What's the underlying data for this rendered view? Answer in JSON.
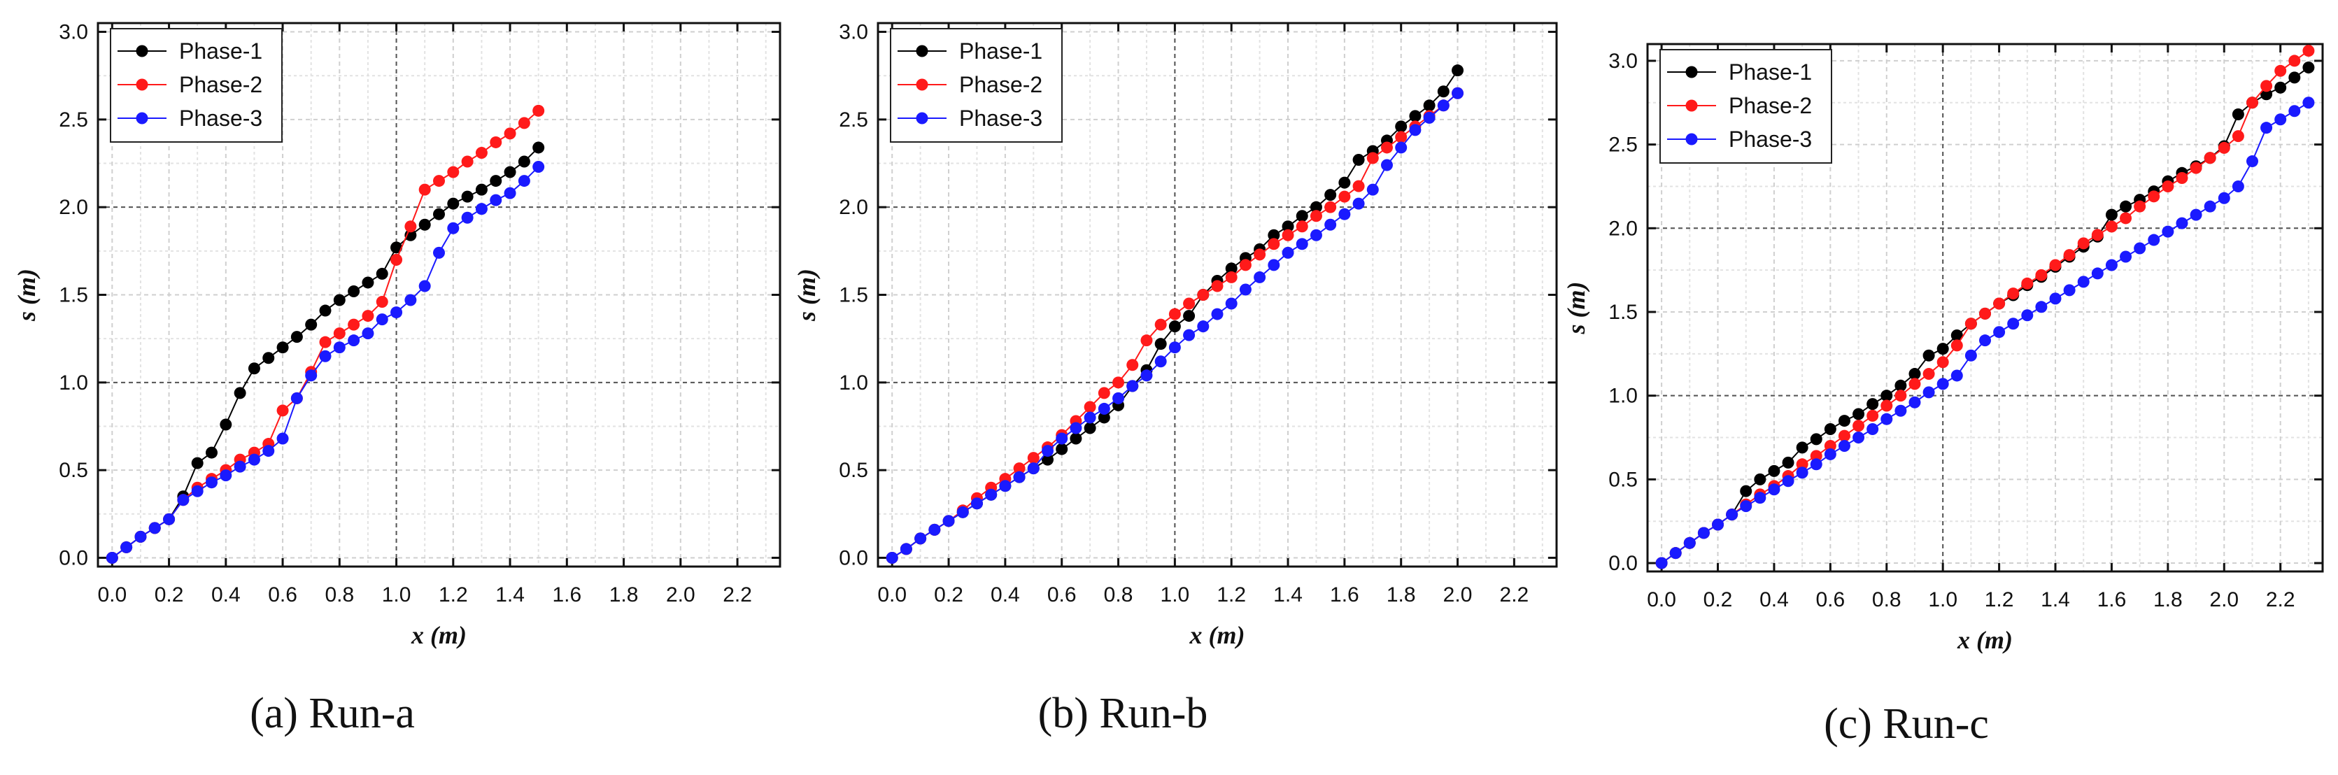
{
  "chart_data": [
    {
      "type": "line",
      "caption": "(a) Run-a",
      "xlabel": "x (m)",
      "ylabel": "s (m)",
      "xlim": [
        -0.05,
        2.35
      ],
      "ylim": [
        -0.05,
        3.05
      ],
      "xticks": [
        "0.0",
        "0.2",
        "0.4",
        "0.6",
        "0.8",
        "1.0",
        "1.2",
        "1.4",
        "1.6",
        "1.8",
        "2.0",
        "2.2"
      ],
      "yticks": [
        "0.0",
        "0.5",
        "1.0",
        "1.5",
        "2.0",
        "2.5",
        "3.0"
      ],
      "grid": true,
      "legend_position": "top-left",
      "series": [
        {
          "name": "Phase-1",
          "color": "#000000",
          "x": [
            0.0,
            0.05,
            0.1,
            0.15,
            0.2,
            0.25,
            0.3,
            0.35,
            0.4,
            0.45,
            0.5,
            0.55,
            0.6,
            0.65,
            0.7,
            0.75,
            0.8,
            0.85,
            0.9,
            0.95,
            1.0,
            1.05,
            1.1,
            1.15,
            1.2,
            1.25,
            1.3,
            1.35,
            1.4,
            1.45,
            1.5
          ],
          "y": [
            0.0,
            0.06,
            0.12,
            0.17,
            0.22,
            0.35,
            0.54,
            0.6,
            0.76,
            0.94,
            1.08,
            1.14,
            1.2,
            1.26,
            1.33,
            1.41,
            1.47,
            1.52,
            1.57,
            1.62,
            1.77,
            1.84,
            1.9,
            1.96,
            2.02,
            2.06,
            2.1,
            2.15,
            2.2,
            2.26,
            2.34
          ]
        },
        {
          "name": "Phase-2",
          "color": "#ff1a1a",
          "x": [
            0.0,
            0.05,
            0.1,
            0.15,
            0.2,
            0.25,
            0.3,
            0.35,
            0.4,
            0.45,
            0.5,
            0.55,
            0.6,
            0.65,
            0.7,
            0.75,
            0.8,
            0.85,
            0.9,
            0.95,
            1.0,
            1.05,
            1.1,
            1.15,
            1.2,
            1.25,
            1.3,
            1.35,
            1.4,
            1.45,
            1.5
          ],
          "y": [
            0.0,
            0.06,
            0.12,
            0.17,
            0.22,
            0.33,
            0.4,
            0.45,
            0.5,
            0.56,
            0.6,
            0.65,
            0.84,
            0.91,
            1.06,
            1.23,
            1.28,
            1.33,
            1.38,
            1.46,
            1.7,
            1.89,
            2.1,
            2.15,
            2.2,
            2.26,
            2.31,
            2.37,
            2.42,
            2.48,
            2.55
          ]
        },
        {
          "name": "Phase-3",
          "color": "#1a1aff",
          "x": [
            0.0,
            0.05,
            0.1,
            0.15,
            0.2,
            0.25,
            0.3,
            0.35,
            0.4,
            0.45,
            0.5,
            0.55,
            0.6,
            0.65,
            0.7,
            0.75,
            0.8,
            0.85,
            0.9,
            0.95,
            1.0,
            1.05,
            1.1,
            1.15,
            1.2,
            1.25,
            1.3,
            1.35,
            1.4,
            1.45,
            1.5
          ],
          "y": [
            0.0,
            0.06,
            0.12,
            0.17,
            0.22,
            0.33,
            0.38,
            0.43,
            0.47,
            0.52,
            0.56,
            0.61,
            0.68,
            0.91,
            1.04,
            1.15,
            1.2,
            1.24,
            1.28,
            1.36,
            1.4,
            1.47,
            1.55,
            1.74,
            1.88,
            1.94,
            1.99,
            2.04,
            2.08,
            2.15,
            2.23
          ]
        }
      ]
    },
    {
      "type": "line",
      "caption": "(b) Run-b",
      "xlabel": "x (m)",
      "ylabel": "s (m)",
      "xlim": [
        -0.05,
        2.35
      ],
      "ylim": [
        -0.05,
        3.05
      ],
      "xticks": [
        "0.0",
        "0.2",
        "0.4",
        "0.6",
        "0.8",
        "1.0",
        "1.2",
        "1.4",
        "1.6",
        "1.8",
        "2.0",
        "2.2"
      ],
      "yticks": [
        "0.0",
        "0.5",
        "1.0",
        "1.5",
        "2.0",
        "2.5",
        "3.0"
      ],
      "grid": true,
      "legend_position": "top-left",
      "series": [
        {
          "name": "Phase-1",
          "color": "#000000",
          "x": [
            0.0,
            0.05,
            0.1,
            0.15,
            0.2,
            0.25,
            0.3,
            0.35,
            0.4,
            0.45,
            0.5,
            0.55,
            0.6,
            0.65,
            0.7,
            0.75,
            0.8,
            0.85,
            0.9,
            0.95,
            1.0,
            1.05,
            1.1,
            1.15,
            1.2,
            1.25,
            1.3,
            1.35,
            1.4,
            1.45,
            1.5,
            1.55,
            1.6,
            1.65,
            1.7,
            1.75,
            1.8,
            1.85,
            1.9,
            1.95,
            2.0
          ],
          "y": [
            0.0,
            0.05,
            0.11,
            0.16,
            0.21,
            0.26,
            0.31,
            0.36,
            0.41,
            0.46,
            0.51,
            0.56,
            0.62,
            0.68,
            0.74,
            0.8,
            0.87,
            0.98,
            1.07,
            1.22,
            1.32,
            1.38,
            1.5,
            1.58,
            1.65,
            1.71,
            1.76,
            1.84,
            1.89,
            1.95,
            2.0,
            2.07,
            2.14,
            2.27,
            2.32,
            2.38,
            2.46,
            2.52,
            2.58,
            2.66,
            2.78
          ]
        },
        {
          "name": "Phase-2",
          "color": "#ff1a1a",
          "x": [
            0.0,
            0.05,
            0.1,
            0.15,
            0.2,
            0.25,
            0.3,
            0.35,
            0.4,
            0.45,
            0.5,
            0.55,
            0.6,
            0.65,
            0.7,
            0.75,
            0.8,
            0.85,
            0.9,
            0.95,
            1.0,
            1.05,
            1.1,
            1.15,
            1.2,
            1.25,
            1.3,
            1.35,
            1.4,
            1.45,
            1.5,
            1.55,
            1.6,
            1.65,
            1.7,
            1.75,
            1.8,
            1.85,
            1.9,
            1.95,
            2.0
          ],
          "y": [
            0.0,
            0.05,
            0.11,
            0.16,
            0.21,
            0.27,
            0.34,
            0.4,
            0.45,
            0.51,
            0.57,
            0.63,
            0.7,
            0.78,
            0.86,
            0.94,
            1.0,
            1.1,
            1.24,
            1.33,
            1.39,
            1.45,
            1.5,
            1.55,
            1.6,
            1.67,
            1.73,
            1.79,
            1.84,
            1.89,
            1.95,
            2.0,
            2.06,
            2.12,
            2.28,
            2.34,
            2.4,
            2.46,
            2.52,
            2.58,
            2.65
          ]
        },
        {
          "name": "Phase-3",
          "color": "#1a1aff",
          "x": [
            0.0,
            0.05,
            0.1,
            0.15,
            0.2,
            0.25,
            0.3,
            0.35,
            0.4,
            0.45,
            0.5,
            0.55,
            0.6,
            0.65,
            0.7,
            0.75,
            0.8,
            0.85,
            0.9,
            0.95,
            1.0,
            1.05,
            1.1,
            1.15,
            1.2,
            1.25,
            1.3,
            1.35,
            1.4,
            1.45,
            1.5,
            1.55,
            1.6,
            1.65,
            1.7,
            1.75,
            1.8,
            1.85,
            1.9,
            1.95,
            2.0
          ],
          "y": [
            0.0,
            0.05,
            0.11,
            0.16,
            0.21,
            0.26,
            0.31,
            0.36,
            0.41,
            0.46,
            0.51,
            0.61,
            0.68,
            0.74,
            0.8,
            0.85,
            0.91,
            0.98,
            1.04,
            1.12,
            1.2,
            1.27,
            1.32,
            1.39,
            1.45,
            1.53,
            1.6,
            1.67,
            1.74,
            1.79,
            1.84,
            1.9,
            1.96,
            2.02,
            2.1,
            2.24,
            2.34,
            2.44,
            2.51,
            2.58,
            2.65
          ]
        }
      ]
    },
    {
      "type": "line",
      "caption": "(c) Run-c",
      "xlabel": "x (m)",
      "ylabel": "s (m)",
      "xlim": [
        -0.05,
        2.35
      ],
      "ylim": [
        -0.05,
        3.1
      ],
      "xticks": [
        "0.0",
        "0.2",
        "0.4",
        "0.6",
        "0.8",
        "1.0",
        "1.2",
        "1.4",
        "1.6",
        "1.8",
        "2.0",
        "2.2"
      ],
      "yticks": [
        "0.0",
        "0.5",
        "1.0",
        "1.5",
        "2.0",
        "2.5",
        "3.0"
      ],
      "grid": true,
      "legend_position": "top-left",
      "series": [
        {
          "name": "Phase-1",
          "color": "#000000",
          "x": [
            0.0,
            0.05,
            0.1,
            0.15,
            0.2,
            0.25,
            0.3,
            0.35,
            0.4,
            0.45,
            0.5,
            0.55,
            0.6,
            0.65,
            0.7,
            0.75,
            0.8,
            0.85,
            0.9,
            0.95,
            1.0,
            1.05,
            1.1,
            1.15,
            1.2,
            1.25,
            1.3,
            1.35,
            1.4,
            1.45,
            1.5,
            1.55,
            1.6,
            1.65,
            1.7,
            1.75,
            1.8,
            1.85,
            1.9,
            1.95,
            2.0,
            2.05,
            2.1,
            2.15,
            2.2,
            2.25,
            2.3
          ],
          "y": [
            0.0,
            0.06,
            0.12,
            0.18,
            0.23,
            0.29,
            0.43,
            0.5,
            0.55,
            0.6,
            0.69,
            0.74,
            0.8,
            0.85,
            0.89,
            0.95,
            1.0,
            1.06,
            1.13,
            1.24,
            1.28,
            1.36,
            1.43,
            1.49,
            1.55,
            1.6,
            1.66,
            1.71,
            1.77,
            1.83,
            1.89,
            1.95,
            2.08,
            2.13,
            2.17,
            2.22,
            2.28,
            2.33,
            2.37,
            2.42,
            2.49,
            2.68,
            2.75,
            2.8,
            2.84,
            2.9,
            2.96
          ]
        },
        {
          "name": "Phase-2",
          "color": "#ff1a1a",
          "x": [
            0.0,
            0.05,
            0.1,
            0.15,
            0.2,
            0.25,
            0.3,
            0.35,
            0.4,
            0.45,
            0.5,
            0.55,
            0.6,
            0.65,
            0.7,
            0.75,
            0.8,
            0.85,
            0.9,
            0.95,
            1.0,
            1.05,
            1.1,
            1.15,
            1.2,
            1.25,
            1.3,
            1.35,
            1.4,
            1.45,
            1.5,
            1.55,
            1.6,
            1.65,
            1.7,
            1.75,
            1.8,
            1.85,
            1.9,
            1.95,
            2.0,
            2.05,
            2.1,
            2.15,
            2.2,
            2.25,
            2.3
          ],
          "y": [
            0.0,
            0.06,
            0.12,
            0.18,
            0.23,
            0.29,
            0.35,
            0.41,
            0.46,
            0.52,
            0.59,
            0.64,
            0.7,
            0.76,
            0.82,
            0.88,
            0.94,
            1.0,
            1.07,
            1.13,
            1.2,
            1.3,
            1.43,
            1.49,
            1.55,
            1.61,
            1.67,
            1.72,
            1.78,
            1.84,
            1.91,
            1.96,
            2.01,
            2.06,
            2.13,
            2.19,
            2.25,
            2.3,
            2.36,
            2.42,
            2.48,
            2.55,
            2.75,
            2.85,
            2.94,
            3.0,
            3.06
          ]
        },
        {
          "name": "Phase-3",
          "color": "#1a1aff",
          "x": [
            0.0,
            0.05,
            0.1,
            0.15,
            0.2,
            0.25,
            0.3,
            0.35,
            0.4,
            0.45,
            0.5,
            0.55,
            0.6,
            0.65,
            0.7,
            0.75,
            0.8,
            0.85,
            0.9,
            0.95,
            1.0,
            1.05,
            1.1,
            1.15,
            1.2,
            1.25,
            1.3,
            1.35,
            1.4,
            1.45,
            1.5,
            1.55,
            1.6,
            1.65,
            1.7,
            1.75,
            1.8,
            1.85,
            1.9,
            1.95,
            2.0,
            2.05,
            2.1,
            2.15,
            2.2,
            2.25,
            2.3
          ],
          "y": [
            0.0,
            0.06,
            0.12,
            0.18,
            0.23,
            0.29,
            0.34,
            0.39,
            0.44,
            0.49,
            0.54,
            0.59,
            0.65,
            0.7,
            0.75,
            0.8,
            0.86,
            0.91,
            0.96,
            1.02,
            1.07,
            1.12,
            1.24,
            1.33,
            1.38,
            1.43,
            1.48,
            1.53,
            1.58,
            1.63,
            1.68,
            1.73,
            1.78,
            1.83,
            1.88,
            1.93,
            1.98,
            2.03,
            2.08,
            2.13,
            2.18,
            2.25,
            2.4,
            2.6,
            2.65,
            2.7,
            2.75
          ]
        }
      ]
    }
  ]
}
